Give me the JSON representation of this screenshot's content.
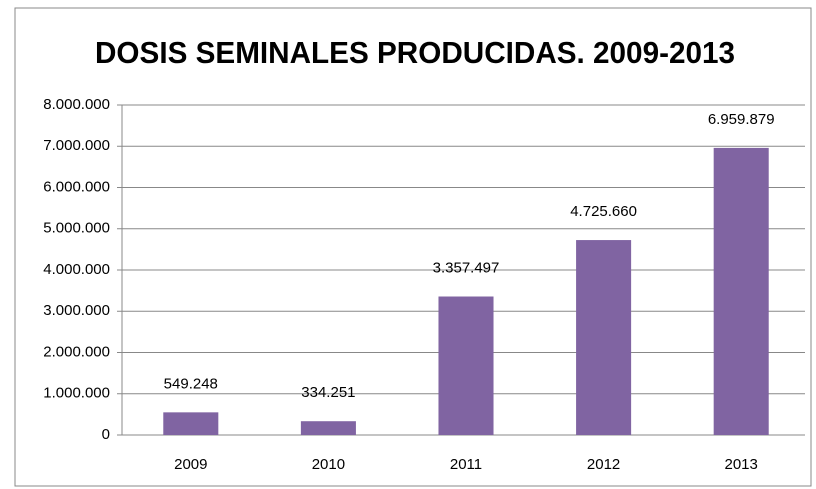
{
  "chart_data": {
    "type": "bar",
    "title": "DOSIS SEMINALES PRODUCIDAS. 2009-2013",
    "categories": [
      "2009",
      "2010",
      "2011",
      "2012",
      "2013"
    ],
    "values": [
      549248,
      334251,
      3357497,
      4725660,
      6959879
    ],
    "value_labels": [
      "549.248",
      "334.251",
      "3.357.497",
      "4.725.660",
      "6.959.879"
    ],
    "color": "#8064a2",
    "ylim": [
      0,
      8000000
    ],
    "yticks": [
      0,
      {
        "value": 1000000,
        "label": "1.000.000"
      },
      {
        "value": 2000000,
        "label": "2.000.000"
      },
      {
        "value": 3000000,
        "label": "3.000.000"
      },
      {
        "value": 4000000,
        "label": "4.000.000"
      },
      {
        "value": 5000000,
        "label": "5.000.000"
      },
      {
        "value": 6000000,
        "label": "6.000.000"
      },
      {
        "value": 7000000,
        "label": "7.000.000"
      },
      {
        "value": 8000000,
        "label": "8.000.000"
      }
    ],
    "grid": true
  }
}
